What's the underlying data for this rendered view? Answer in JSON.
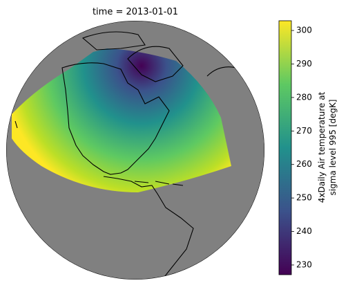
{
  "map": {
    "title": "time = 2013-01-01",
    "colorbar": {
      "label": [
        "4xDaily Air temperature at",
        "sigma level 995 [degK]"
      ],
      "range": [
        227.1,
        302.9
      ],
      "ticks": [
        230,
        240,
        250,
        260,
        270,
        280,
        290,
        300
      ],
      "colormap": "viridis"
    }
  }
}
